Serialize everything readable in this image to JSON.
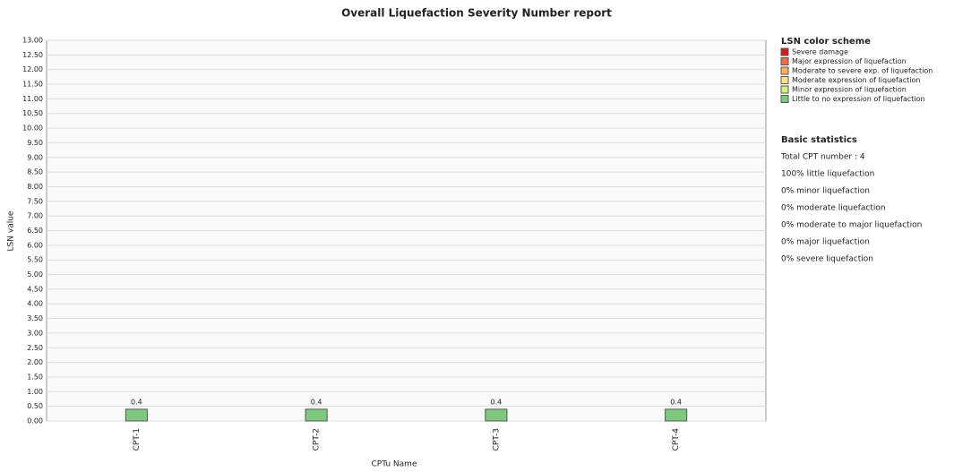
{
  "chart_data": {
    "type": "bar",
    "title": "Overall Liquefaction Severity Number report",
    "x_label": "CPTu Name",
    "y_label": "LSN value",
    "categories": [
      "CPT-1",
      "CPT-2",
      "CPT-3",
      "CPT-4"
    ],
    "values": [
      0.4,
      0.4,
      0.4,
      0.4
    ],
    "color": "#7fc97f",
    "ylim": [
      0,
      13
    ],
    "yticks": [
      {
        "value": 0,
        "label": "0.00"
      },
      {
        "value": 0.5,
        "label": "0.50"
      },
      {
        "value": 1,
        "label": "1.00"
      },
      {
        "value": 1.5,
        "label": "1.50"
      },
      {
        "value": 2,
        "label": "2.00"
      },
      {
        "value": 2.5,
        "label": "2.50"
      },
      {
        "value": 3,
        "label": "3.00"
      },
      {
        "value": 3.5,
        "label": "3.50"
      },
      {
        "value": 4,
        "label": "4.00"
      },
      {
        "value": 4.5,
        "label": "4.50"
      },
      {
        "value": 5,
        "label": "5.00"
      },
      {
        "value": 5.5,
        "label": "5.50"
      },
      {
        "value": 6,
        "label": "6.00"
      },
      {
        "value": 6.5,
        "label": "6.50"
      },
      {
        "value": 7,
        "label": "7.00"
      },
      {
        "value": 7.5,
        "label": "7.50"
      },
      {
        "value": 8,
        "label": "8.00"
      },
      {
        "value": 8.5,
        "label": "8.50"
      },
      {
        "value": 9,
        "label": "9.00"
      },
      {
        "value": 9.5,
        "label": "9.50"
      },
      {
        "value": 10,
        "label": "10.00"
      },
      {
        "value": 10.5,
        "label": "10.50"
      },
      {
        "value": 11,
        "label": "11.00"
      },
      {
        "value": 11.5,
        "label": "11.50"
      },
      {
        "value": 12,
        "label": "12.00"
      },
      {
        "value": 12.5,
        "label": "12.50"
      },
      {
        "value": 13,
        "label": "13.00"
      }
    ],
    "grid": true,
    "legend_title": "LSN color scheme",
    "legend": [
      {
        "name": "Severe damage",
        "color": "#d7191c"
      },
      {
        "name": "Major expression of liquefaction",
        "color": "#f46d43"
      },
      {
        "name": "Moderate to severe exp. of liquefaction",
        "color": "#fdae61"
      },
      {
        "name": "Moderate expression of liquefaction",
        "color": "#fee08b"
      },
      {
        "name": "Minor expression of liquefaction",
        "color": "#d9ef8b"
      },
      {
        "name": "Little to no expression of liquefaction",
        "color": "#7fc97f"
      }
    ],
    "stats_title": "Basic statistics",
    "stats": [
      "Total CPT number : 4",
      "100% little liquefaction",
      "0% minor liquefaction",
      "0% moderate liquefaction",
      "0% moderate to major liquefaction",
      "0% major liquefaction",
      "0% severe liquefaction"
    ]
  }
}
